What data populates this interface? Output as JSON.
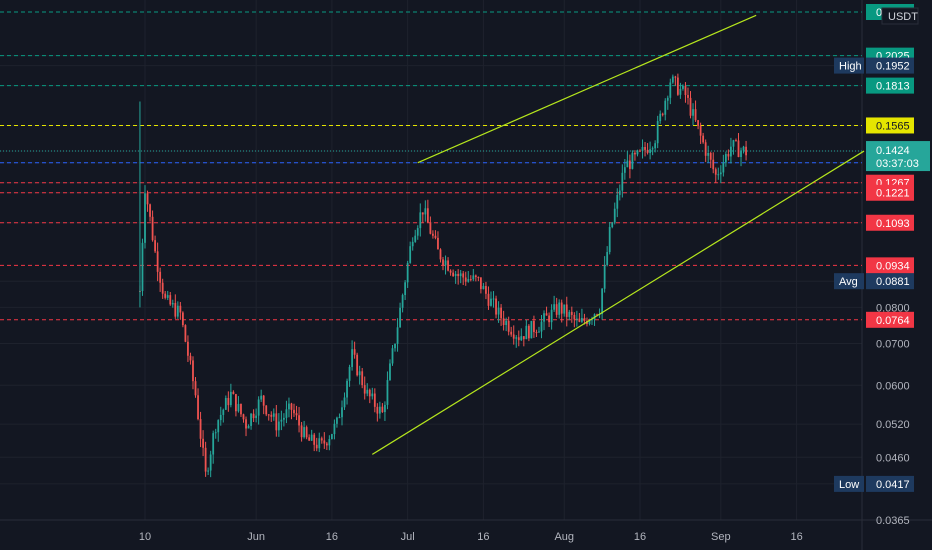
{
  "chart_data": {
    "type": "candlestick",
    "currency": "USDT",
    "x_ticks": [
      "10",
      "Jun",
      "16",
      "Jul",
      "16",
      "Aug",
      "16",
      "Sep",
      "16"
    ],
    "y_ticks": [
      0.0365,
      0.0417,
      0.046,
      0.052,
      0.06,
      0.07,
      0.08,
      0.0881,
      0.1093,
      0.1221,
      0.1267,
      0.1364,
      0.1424,
      0.1565,
      0.1813,
      0.1952,
      0.2025
    ],
    "last_price": "0.1424",
    "countdown": "03:37:03",
    "high": {
      "label": "High",
      "value": "0.1952"
    },
    "avg": {
      "label": "Avg",
      "value": "0.0881"
    },
    "low": {
      "label": "Low",
      "value": "0.0417"
    },
    "colors": {
      "background": "#131722",
      "up": "#26a69a",
      "down": "#ef5350",
      "channel": "#b5e61d",
      "red_level": "#f23645",
      "green_level": "#089981",
      "yellow_level": "#e5e500",
      "blue_level": "#2962ff",
      "last_price": "#26a69a",
      "stat_box": "#1e3a5f"
    },
    "levels": [
      {
        "value": "0",
        "kind": "green"
      },
      {
        "value": "0.2025",
        "kind": "green"
      },
      {
        "value": "0.1813",
        "kind": "green"
      },
      {
        "value": "0.1565",
        "kind": "yellow"
      },
      {
        "value": "0.1364",
        "kind": "blue"
      },
      {
        "value": "0.1267",
        "kind": "red"
      },
      {
        "value": "0.1221",
        "kind": "red"
      },
      {
        "value": "0.1093",
        "kind": "red"
      },
      {
        "value": "0.0934",
        "kind": "red"
      },
      {
        "value": "0.0764",
        "kind": "red"
      }
    ],
    "price_path": [
      [
        "May 09",
        0.085
      ],
      [
        "May 10",
        0.125
      ],
      [
        "May 12",
        0.098
      ],
      [
        "May 14",
        0.082
      ],
      [
        "May 17",
        0.078
      ],
      [
        "May 20",
        0.058
      ],
      [
        "May 22",
        0.043
      ],
      [
        "May 24",
        0.052
      ],
      [
        "May 27",
        0.058
      ],
      [
        "May 30",
        0.052
      ],
      [
        "Jun 02",
        0.057
      ],
      [
        "Jun 05",
        0.052
      ],
      [
        "Jun 08",
        0.055
      ],
      [
        "Jun 11",
        0.049
      ],
      [
        "Jun 14",
        0.048
      ],
      [
        "Jun 17",
        0.052
      ],
      [
        "Jun 20",
        0.067
      ],
      [
        "Jun 23",
        0.058
      ],
      [
        "Jun 26",
        0.054
      ],
      [
        "Jun 29",
        0.075
      ],
      [
        "Jul 02",
        0.105
      ],
      [
        "Jul 04",
        0.115
      ],
      [
        "Jul 07",
        0.098
      ],
      [
        "Jul 11",
        0.09
      ],
      [
        "Jul 15",
        0.088
      ],
      [
        "Jul 19",
        0.078
      ],
      [
        "Jul 23",
        0.072
      ],
      [
        "Jul 27",
        0.075
      ],
      [
        "Jul 31",
        0.08
      ],
      [
        "Aug 04",
        0.075
      ],
      [
        "Aug 08",
        0.08
      ],
      [
        "Aug 10",
        0.105
      ],
      [
        "Aug 13",
        0.135
      ],
      [
        "Aug 16",
        0.14
      ],
      [
        "Aug 19",
        0.15
      ],
      [
        "Aug 22",
        0.185
      ],
      [
        "Aug 25",
        0.175
      ],
      [
        "Aug 28",
        0.15
      ],
      [
        "Aug 31",
        0.13
      ],
      [
        "Sep 03",
        0.145
      ],
      [
        "Sep 06",
        0.142
      ]
    ]
  }
}
